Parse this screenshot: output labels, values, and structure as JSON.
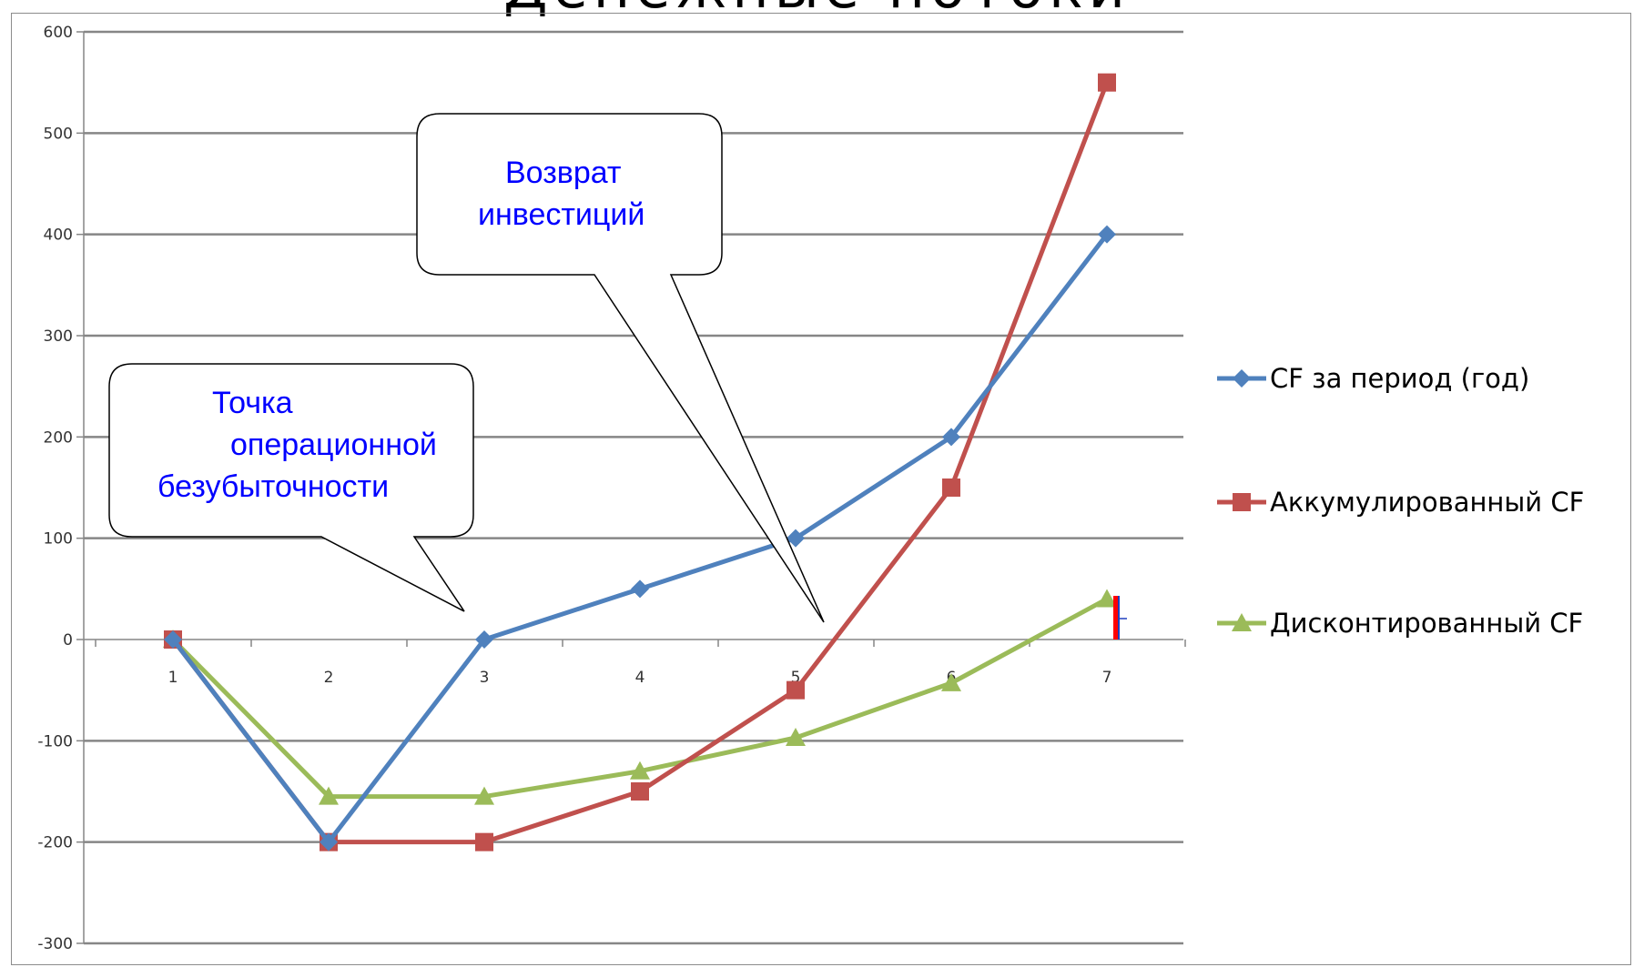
{
  "page": {
    "title": "Денежные потоки"
  },
  "chart_data": {
    "type": "line",
    "title": "",
    "xlabel": "",
    "ylabel": "",
    "categories": [
      "1",
      "2",
      "3",
      "4",
      "5",
      "6",
      "7"
    ],
    "ylim": [
      -300,
      600
    ],
    "yticks": [
      600,
      500,
      400,
      300,
      200,
      100,
      0,
      -100,
      -200,
      -300
    ],
    "grid": true,
    "legend_position": "right",
    "series": [
      {
        "name": "CF за период (год)",
        "values": [
          0,
          -200,
          0,
          50,
          100,
          200,
          400
        ],
        "color": "#4f81bd",
        "marker": "diamond"
      },
      {
        "name": "Аккумулированный CF",
        "values": [
          0,
          -200,
          -200,
          -150,
          -50,
          150,
          550
        ],
        "color": "#c0504d",
        "marker": "square"
      },
      {
        "name": "Дисконтированный CF",
        "values": [
          0,
          -155,
          -155,
          -130,
          -97,
          -43,
          40
        ],
        "color": "#9bbb59",
        "marker": "triangle"
      }
    ],
    "annotations": [
      {
        "id": "break-even",
        "lines": [
          "Точка",
          "операционной",
          "безубыточности"
        ],
        "points_to": {
          "x": "3",
          "y": 0
        }
      },
      {
        "id": "payback",
        "lines": [
          "Возврат",
          "инвестиций"
        ],
        "points_to": {
          "x": "5",
          "y": 0
        }
      }
    ]
  }
}
